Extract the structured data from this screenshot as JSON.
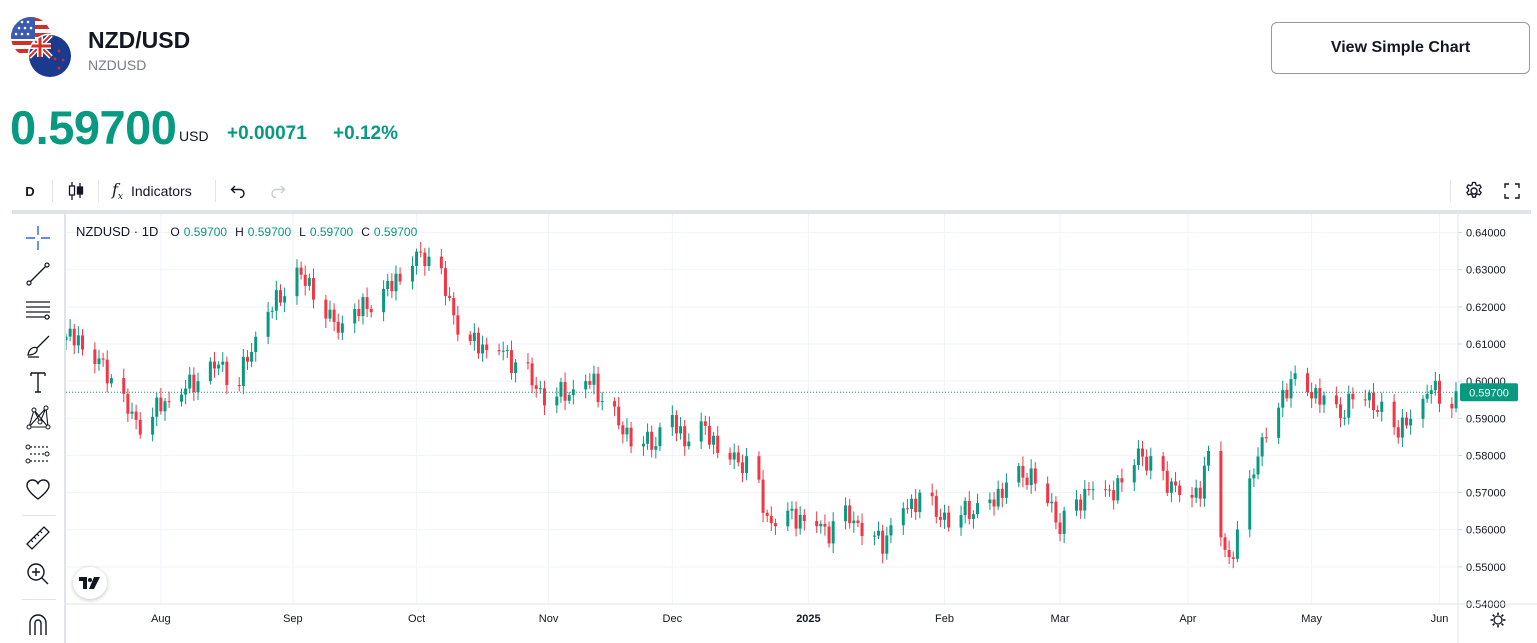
{
  "header": {
    "symbol": "NZD/USD",
    "symbol_code": "NZDUSD",
    "simple_chart_label": "View Simple Chart",
    "price": "0.59700",
    "currency": "USD",
    "change_abs": "+0.00071",
    "change_pct": "+0.12%"
  },
  "toolbar": {
    "interval": "D",
    "indicators_label": "Indicators",
    "icons": [
      "candles-icon",
      "function-icon",
      "undo-icon",
      "redo-icon",
      "settings-icon",
      "fullscreen-icon"
    ]
  },
  "tools": [
    "crosshair-icon",
    "trend-line-icon",
    "horizontal-lines-icon",
    "brush-icon",
    "text-icon",
    "pattern-icon",
    "prediction-icon",
    "heart-icon",
    "ruler-icon",
    "zoom-in-icon",
    "magnet-icon"
  ],
  "legend": {
    "title": "NZDUSD · 1D",
    "o_label": "O",
    "o_value": "0.59700",
    "h_label": "H",
    "h_value": "0.59700",
    "l_label": "L",
    "l_value": "0.59700",
    "c_label": "C",
    "c_value": "0.59700"
  },
  "colors": {
    "up": "#089981",
    "down": "#f23645",
    "accent": "#089981",
    "text": "#131722",
    "muted": "#787b86",
    "grid": "#f0f3fa"
  },
  "chart_data": {
    "type": "candlestick",
    "title": "NZDUSD · 1D",
    "ylim": [
      0.54,
      0.645
    ],
    "y_ticks": [
      "0.54000",
      "0.55000",
      "0.56000",
      "0.57000",
      "0.58000",
      "0.59000",
      "0.60000",
      "0.61000",
      "0.62000",
      "0.63000",
      "0.64000"
    ],
    "x_ticks": [
      {
        "label": "Aug",
        "day": 23,
        "bold": false
      },
      {
        "label": "Sep",
        "day": 55,
        "bold": false
      },
      {
        "label": "Oct",
        "day": 85,
        "bold": false
      },
      {
        "label": "Nov",
        "day": 117,
        "bold": false
      },
      {
        "label": "Dec",
        "day": 147,
        "bold": false
      },
      {
        "label": "2025",
        "day": 180,
        "bold": true
      },
      {
        "label": "Feb",
        "day": 213,
        "bold": false
      },
      {
        "label": "Mar",
        "day": 241,
        "bold": false
      },
      {
        "label": "Apr",
        "day": 272,
        "bold": false
      },
      {
        "label": "May",
        "day": 302,
        "bold": false
      },
      {
        "label": "Jun",
        "day": 333,
        "bold": false
      }
    ],
    "day_range": [
      0,
      337
    ],
    "last_price": 0.597,
    "last_price_label": "0.59700",
    "anchors": [
      [
        0,
        0.612
      ],
      [
        6,
        0.608
      ],
      [
        12,
        0.598
      ],
      [
        17,
        0.588
      ],
      [
        22,
        0.592
      ],
      [
        27,
        0.596
      ],
      [
        37,
        0.604
      ],
      [
        42,
        0.6
      ],
      [
        47,
        0.614
      ],
      [
        52,
        0.623
      ],
      [
        56,
        0.628
      ],
      [
        60,
        0.625
      ],
      [
        64,
        0.616
      ],
      [
        68,
        0.614
      ],
      [
        72,
        0.62
      ],
      [
        77,
        0.623
      ],
      [
        81,
        0.629
      ],
      [
        84,
        0.632
      ],
      [
        87,
        0.634
      ],
      [
        90,
        0.63
      ],
      [
        94,
        0.618
      ],
      [
        98,
        0.61
      ],
      [
        104,
        0.609
      ],
      [
        110,
        0.604
      ],
      [
        114,
        0.598
      ],
      [
        119,
        0.596
      ],
      [
        124,
        0.598
      ],
      [
        128,
        0.6
      ],
      [
        131,
        0.593
      ],
      [
        134,
        0.588
      ],
      [
        138,
        0.585
      ],
      [
        142,
        0.583
      ],
      [
        146,
        0.59
      ],
      [
        150,
        0.585
      ],
      [
        155,
        0.587
      ],
      [
        158,
        0.583
      ],
      [
        162,
        0.579
      ],
      [
        166,
        0.578
      ],
      [
        170,
        0.563
      ],
      [
        176,
        0.564
      ],
      [
        180,
        0.563
      ],
      [
        185,
        0.56
      ],
      [
        190,
        0.564
      ],
      [
        194,
        0.56
      ],
      [
        198,
        0.557
      ],
      [
        203,
        0.566
      ],
      [
        207,
        0.569
      ],
      [
        210,
        0.566
      ],
      [
        214,
        0.563
      ],
      [
        218,
        0.566
      ],
      [
        222,
        0.565
      ],
      [
        226,
        0.57
      ],
      [
        230,
        0.575
      ],
      [
        234,
        0.575
      ],
      [
        237,
        0.572
      ],
      [
        241,
        0.561
      ],
      [
        244,
        0.565
      ],
      [
        248,
        0.572
      ],
      [
        252,
        0.57
      ],
      [
        256,
        0.573
      ],
      [
        260,
        0.582
      ],
      [
        264,
        0.575
      ],
      [
        268,
        0.573
      ],
      [
        272,
        0.568
      ],
      [
        275,
        0.572
      ],
      [
        277,
        0.58
      ],
      [
        280,
        0.56
      ],
      [
        282,
        0.552
      ],
      [
        285,
        0.56
      ],
      [
        288,
        0.578
      ],
      [
        291,
        0.586
      ],
      [
        294,
        0.595
      ],
      [
        297,
        0.6
      ],
      [
        302,
        0.598
      ],
      [
        306,
        0.593
      ],
      [
        310,
        0.592
      ],
      [
        314,
        0.6
      ],
      [
        318,
        0.592
      ],
      [
        322,
        0.588
      ],
      [
        326,
        0.589
      ],
      [
        329,
        0.595
      ],
      [
        331,
        0.6
      ],
      [
        333,
        0.594
      ],
      [
        337,
        0.597
      ]
    ]
  }
}
